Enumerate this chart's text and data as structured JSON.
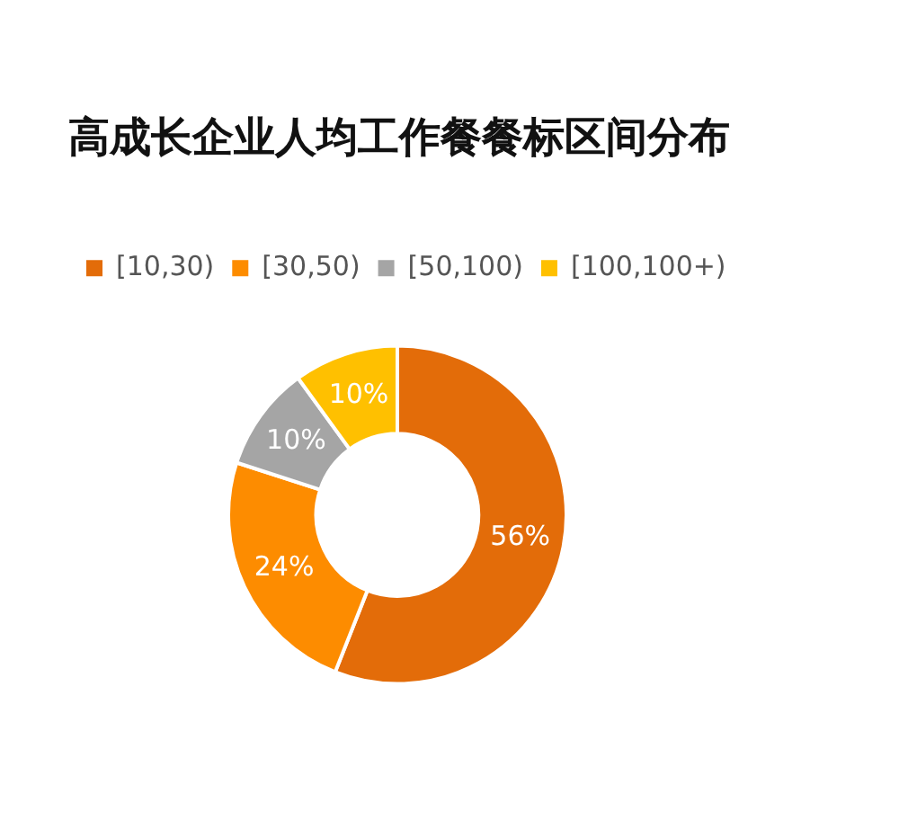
{
  "chart_data": {
    "type": "donut",
    "title": "高成长企业人均工作餐餐标区间分布",
    "categories": [
      "[10,30)",
      "[30,50)",
      "[50,100)",
      "[100,100+)"
    ],
    "values": [
      56,
      24,
      10,
      10
    ],
    "value_labels": [
      "56%",
      "24%",
      "10%",
      "10%"
    ],
    "colors": [
      "#e36c09",
      "#fd8c00",
      "#a5a5a5",
      "#ffc000"
    ],
    "legend": "top left"
  }
}
